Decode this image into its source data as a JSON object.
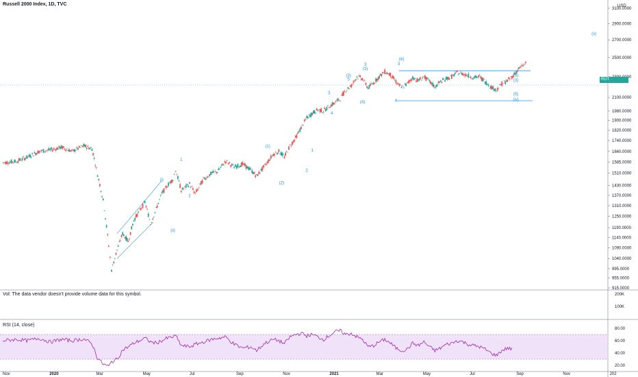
{
  "header": {
    "title": "Russell 2000 Index, 1D, TVC"
  },
  "volume_pane": {
    "note": "Vol: The data vendor doesn't provide volume data for this symbol."
  },
  "rsi_pane": {
    "title": "RSI (14, close)"
  },
  "price_badge": {
    "symbol": "RUT",
    "value": "2216.9206",
    "color": "#26a69a"
  },
  "colors": {
    "up": "#26a69a",
    "down": "#ef5350",
    "trend": "#2196f3",
    "rsi_line": "#9c27b0",
    "rsi_band": "#e9d5f7"
  },
  "chart_data": {
    "type": "candlestick",
    "price_axis": {
      "ticks": [
        "3100.0000",
        "2900.0000",
        "2700.0000",
        "2500.0000",
        "2300.0000",
        "2100.0000",
        "1980.0000",
        "1900.0000",
        "1820.0000",
        "1740.0000",
        "1660.0000",
        "1585.0000",
        "1510.0000",
        "1430.0000",
        "1370.0000",
        "1310.0000",
        "1250.0000",
        "1190.0000",
        "1140.0000",
        "1090.0000",
        "1040.0000",
        "995.0000",
        "955.0000",
        "915.0000"
      ],
      "unit": "USD",
      "range": [
        915,
        3100
      ]
    },
    "volume_axis": {
      "ticks": [
        "200K",
        "100K"
      ]
    },
    "rsi_axis": {
      "ticks": [
        "80.00",
        "60.00",
        "40.00",
        "20.00"
      ],
      "range": [
        10,
        90
      ],
      "band": [
        30,
        70
      ]
    },
    "time_axis": {
      "ticks": [
        "Nov",
        "2020",
        "Mar",
        "May",
        "Jul",
        "Sep",
        "Nov",
        "2021",
        "Mar",
        "May",
        "Jul",
        "Sep",
        "Nov",
        "202"
      ]
    },
    "price_path": [
      [
        2019.83,
        1580
      ],
      [
        2019.88,
        1590
      ],
      [
        2019.92,
        1620
      ],
      [
        2019.96,
        1660
      ],
      [
        2020.0,
        1670
      ],
      [
        2020.04,
        1690
      ],
      [
        2020.08,
        1660
      ],
      [
        2020.12,
        1700
      ],
      [
        2020.15,
        1680
      ],
      [
        2020.17,
        1500
      ],
      [
        2020.19,
        1340
      ],
      [
        2020.21,
        1100
      ],
      [
        2020.22,
        990
      ],
      [
        2020.24,
        1080
      ],
      [
        2020.26,
        1160
      ],
      [
        2020.28,
        1120
      ],
      [
        2020.3,
        1230
      ],
      [
        2020.32,
        1280
      ],
      [
        2020.34,
        1330
      ],
      [
        2020.36,
        1210
      ],
      [
        2020.38,
        1290
      ],
      [
        2020.4,
        1380
      ],
      [
        2020.42,
        1430
      ],
      [
        2020.44,
        1470
      ],
      [
        2020.45,
        1530
      ],
      [
        2020.47,
        1400
      ],
      [
        2020.5,
        1440
      ],
      [
        2020.52,
        1380
      ],
      [
        2020.55,
        1470
      ],
      [
        2020.58,
        1510
      ],
      [
        2020.6,
        1520
      ],
      [
        2020.63,
        1590
      ],
      [
        2020.66,
        1550
      ],
      [
        2020.69,
        1570
      ],
      [
        2020.72,
        1530
      ],
      [
        2020.74,
        1490
      ],
      [
        2020.77,
        1560
      ],
      [
        2020.8,
        1640
      ],
      [
        2020.82,
        1660
      ],
      [
        2020.84,
        1620
      ],
      [
        2020.86,
        1700
      ],
      [
        2020.88,
        1760
      ],
      [
        2020.9,
        1840
      ],
      [
        2020.92,
        1920
      ],
      [
        2020.94,
        1960
      ],
      [
        2020.96,
        1990
      ],
      [
        2020.98,
        1980
      ],
      [
        2021.0,
        2020
      ],
      [
        2021.02,
        2050
      ],
      [
        2021.04,
        2090
      ],
      [
        2021.06,
        2170
      ],
      [
        2021.08,
        2210
      ],
      [
        2021.1,
        2300
      ],
      [
        2021.12,
        2280
      ],
      [
        2021.14,
        2190
      ],
      [
        2021.16,
        2240
      ],
      [
        2021.18,
        2300
      ],
      [
        2021.2,
        2350
      ],
      [
        2021.22,
        2320
      ],
      [
        2021.24,
        2250
      ],
      [
        2021.26,
        2190
      ],
      [
        2021.28,
        2230
      ],
      [
        2021.3,
        2290
      ],
      [
        2021.32,
        2260
      ],
      [
        2021.34,
        2300
      ],
      [
        2021.36,
        2250
      ],
      [
        2021.38,
        2200
      ],
      [
        2021.4,
        2250
      ],
      [
        2021.42,
        2280
      ],
      [
        2021.44,
        2300
      ],
      [
        2021.46,
        2340
      ],
      [
        2021.48,
        2330
      ],
      [
        2021.5,
        2310
      ],
      [
        2021.52,
        2290
      ],
      [
        2021.54,
        2300
      ],
      [
        2021.56,
        2250
      ],
      [
        2021.58,
        2200
      ],
      [
        2021.6,
        2170
      ],
      [
        2021.62,
        2230
      ],
      [
        2021.64,
        2260
      ],
      [
        2021.66,
        2310
      ],
      [
        2021.68,
        2380
      ],
      [
        2021.7,
        2420
      ],
      [
        2021.71,
        2470
      ]
    ],
    "rsi_path": [
      [
        2019.83,
        60
      ],
      [
        2019.88,
        62
      ],
      [
        2019.92,
        60
      ],
      [
        2019.96,
        64
      ],
      [
        2020.0,
        58
      ],
      [
        2020.04,
        62
      ],
      [
        2020.08,
        60
      ],
      [
        2020.12,
        63
      ],
      [
        2020.15,
        55
      ],
      [
        2020.17,
        32
      ],
      [
        2020.19,
        22
      ],
      [
        2020.21,
        18
      ],
      [
        2020.22,
        26
      ],
      [
        2020.24,
        30
      ],
      [
        2020.26,
        45
      ],
      [
        2020.28,
        50
      ],
      [
        2020.3,
        56
      ],
      [
        2020.32,
        60
      ],
      [
        2020.34,
        64
      ],
      [
        2020.36,
        58
      ],
      [
        2020.38,
        56
      ],
      [
        2020.4,
        60
      ],
      [
        2020.42,
        64
      ],
      [
        2020.44,
        66
      ],
      [
        2020.45,
        68
      ],
      [
        2020.47,
        52
      ],
      [
        2020.5,
        50
      ],
      [
        2020.52,
        54
      ],
      [
        2020.55,
        58
      ],
      [
        2020.58,
        62
      ],
      [
        2020.6,
        64
      ],
      [
        2020.63,
        66
      ],
      [
        2020.66,
        54
      ],
      [
        2020.69,
        48
      ],
      [
        2020.72,
        50
      ],
      [
        2020.74,
        44
      ],
      [
        2020.77,
        56
      ],
      [
        2020.8,
        62
      ],
      [
        2020.82,
        60
      ],
      [
        2020.84,
        55
      ],
      [
        2020.86,
        66
      ],
      [
        2020.88,
        70
      ],
      [
        2020.9,
        72
      ],
      [
        2020.92,
        68
      ],
      [
        2020.94,
        70
      ],
      [
        2020.96,
        66
      ],
      [
        2020.98,
        62
      ],
      [
        2021.0,
        68
      ],
      [
        2021.02,
        74
      ],
      [
        2021.04,
        76
      ],
      [
        2021.06,
        70
      ],
      [
        2021.08,
        72
      ],
      [
        2021.1,
        66
      ],
      [
        2021.12,
        62
      ],
      [
        2021.14,
        50
      ],
      [
        2021.16,
        52
      ],
      [
        2021.18,
        58
      ],
      [
        2021.2,
        62
      ],
      [
        2021.22,
        56
      ],
      [
        2021.24,
        48
      ],
      [
        2021.26,
        44
      ],
      [
        2021.28,
        46
      ],
      [
        2021.3,
        56
      ],
      [
        2021.32,
        52
      ],
      [
        2021.34,
        58
      ],
      [
        2021.36,
        50
      ],
      [
        2021.38,
        44
      ],
      [
        2021.4,
        48
      ],
      [
        2021.42,
        54
      ],
      [
        2021.44,
        56
      ],
      [
        2021.46,
        60
      ],
      [
        2021.48,
        58
      ],
      [
        2021.5,
        54
      ],
      [
        2021.52,
        52
      ],
      [
        2021.54,
        50
      ],
      [
        2021.56,
        46
      ],
      [
        2021.58,
        40
      ],
      [
        2021.6,
        36
      ],
      [
        2021.62,
        44
      ],
      [
        2021.64,
        48
      ],
      [
        2021.66,
        46
      ]
    ],
    "time_range": [
      2019.82,
      2022.0
    ],
    "annotations": [
      {
        "text": "(v)",
        "t": 2021.95,
        "p": 2760
      },
      {
        "text": "(iii)",
        "t": 2021.26,
        "p": 2470
      },
      {
        "text": "3",
        "t": 2021.25,
        "p": 2420
      },
      {
        "text": "3",
        "t": 2021.13,
        "p": 2410
      },
      {
        "text": "(3)",
        "t": 2021.13,
        "p": 2370
      },
      {
        "text": "(3)",
        "t": 2021.07,
        "p": 2300
      },
      {
        "text": "5",
        "t": 2021.07,
        "p": 2260
      },
      {
        "text": "(4)",
        "t": 2021.12,
        "p": 2050
      },
      {
        "text": "4",
        "t": 2021.24,
        "p": 2060
      },
      {
        "text": "3",
        "t": 2021.0,
        "p": 2130
      },
      {
        "text": "4",
        "t": 2021.01,
        "p": 1950
      },
      {
        "text": "(5)",
        "t": 2021.67,
        "p": 2300
      },
      {
        "text": "(3)",
        "t": 2021.67,
        "p": 2250
      },
      {
        "text": "(5)",
        "t": 2021.67,
        "p": 2120
      },
      {
        "text": "(iv)",
        "t": 2021.67,
        "p": 2070
      },
      {
        "text": "1",
        "t": 2020.94,
        "p": 1660
      },
      {
        "text": "2",
        "t": 2020.92,
        "p": 1520
      },
      {
        "text": "(1)",
        "t": 2020.78,
        "p": 1690
      },
      {
        "text": "(2)",
        "t": 2020.83,
        "p": 1440
      },
      {
        "text": "1",
        "t": 2020.47,
        "p": 1590
      },
      {
        "text": "2",
        "t": 2020.5,
        "p": 1360
      },
      {
        "text": "(i)",
        "t": 2020.4,
        "p": 1460
      },
      {
        "text": "(ii)",
        "t": 2020.44,
        "p": 1170
      }
    ]
  }
}
